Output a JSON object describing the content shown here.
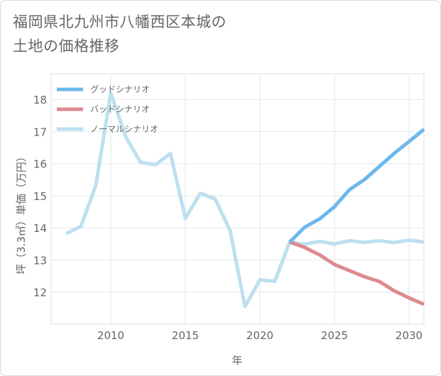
{
  "title": {
    "line1": "福岡県北九州市八幡西区本城の",
    "line2": "土地の価格推移"
  },
  "chart_data": {
    "type": "line",
    "xlabel": "年",
    "ylabel": "坪（3.3㎡）単価（万円）",
    "xlim": [
      2006,
      2031
    ],
    "ylim": [
      11,
      18.8
    ],
    "x_ticks": [
      2010,
      2015,
      2020,
      2025,
      2030
    ],
    "y_ticks": [
      12,
      13,
      14,
      15,
      16,
      17,
      18
    ],
    "grid": true,
    "legend_position": "top-left",
    "series": [
      {
        "name": "グッドシナリオ",
        "color": "#6cb8ec",
        "x": [
          2022,
          2023,
          2024,
          2025,
          2026,
          2027,
          2028,
          2029,
          2030,
          2031
        ],
        "values": [
          13.56,
          14.02,
          14.28,
          14.66,
          15.19,
          15.5,
          15.91,
          16.32,
          16.69,
          17.07
        ]
      },
      {
        "name": "バッドシナリオ",
        "color": "#dd8a90",
        "x": [
          2022,
          2023,
          2024,
          2025,
          2026,
          2027,
          2028,
          2029,
          2030,
          2031
        ],
        "values": [
          13.56,
          13.39,
          13.16,
          12.86,
          12.67,
          12.48,
          12.33,
          12.04,
          11.82,
          11.62
        ]
      },
      {
        "name": "ノーマルシナリオ",
        "color": "#bde0f0",
        "x": [
          2007,
          2008,
          2009,
          2010,
          2011,
          2012,
          2013,
          2014,
          2015,
          2016,
          2017,
          2018,
          2019,
          2020,
          2021,
          2022,
          2023,
          2024,
          2025,
          2026,
          2027,
          2028,
          2029,
          2030,
          2031
        ],
        "values": [
          13.82,
          14.05,
          15.33,
          18.2,
          16.84,
          16.04,
          15.97,
          16.32,
          14.3,
          15.08,
          14.9,
          13.92,
          11.55,
          12.38,
          12.34,
          13.56,
          13.49,
          13.58,
          13.5,
          13.6,
          13.55,
          13.6,
          13.54,
          13.62,
          13.56
        ]
      }
    ]
  }
}
